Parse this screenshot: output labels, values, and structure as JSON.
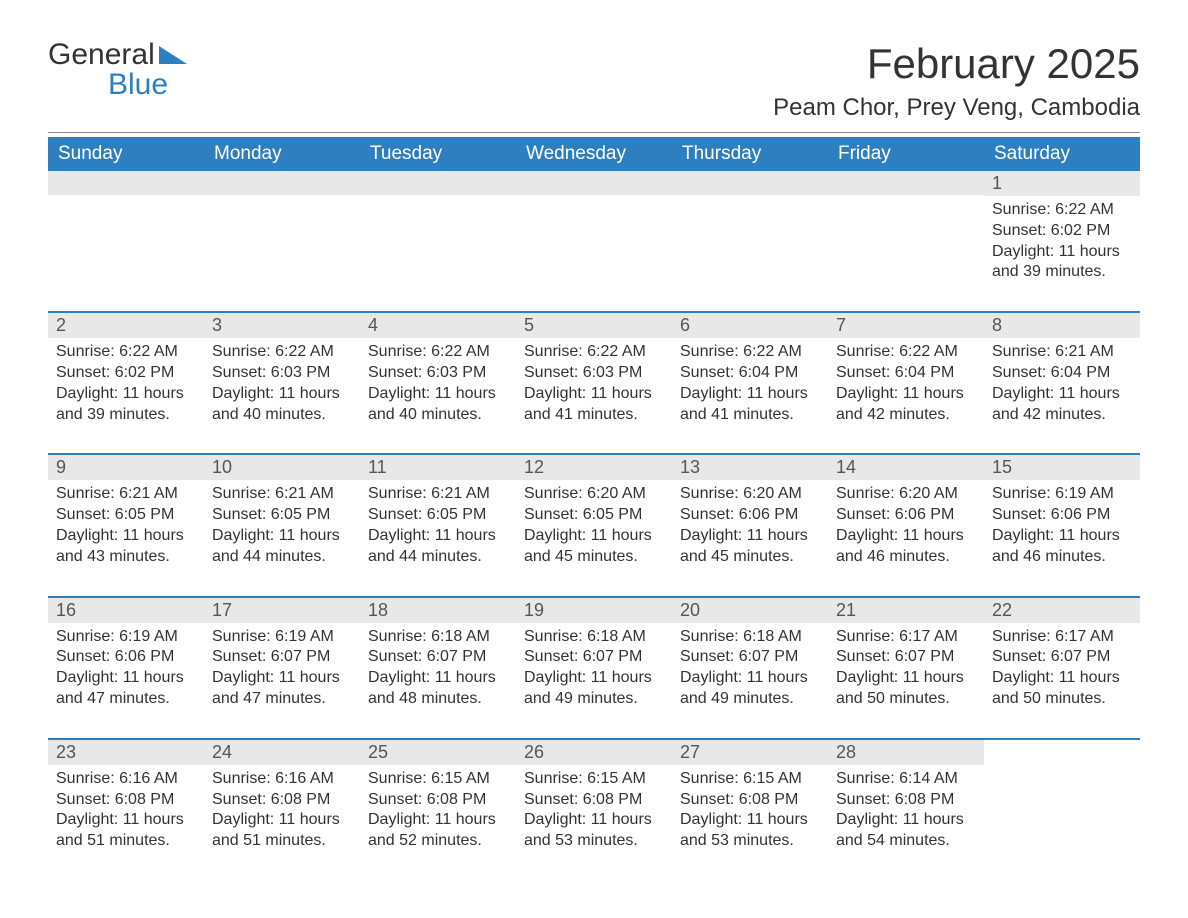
{
  "logo": {
    "word1": "General",
    "word2": "Blue"
  },
  "header": {
    "title": "February 2025",
    "location": "Peam Chor, Prey Veng, Cambodia"
  },
  "colors": {
    "primary": "#2e7fbf",
    "header_text": "#ffffff",
    "daynum_bg": "#e8e8e8",
    "text": "#333333",
    "background": "#ffffff"
  },
  "daynames": [
    "Sunday",
    "Monday",
    "Tuesday",
    "Wednesday",
    "Thursday",
    "Friday",
    "Saturday"
  ],
  "weeks": [
    [
      {
        "empty": true
      },
      {
        "empty": true
      },
      {
        "empty": true
      },
      {
        "empty": true
      },
      {
        "empty": true
      },
      {
        "empty": true
      },
      {
        "day": "1",
        "sunrise": "Sunrise: 6:22 AM",
        "sunset": "Sunset: 6:02 PM",
        "daylight": "Daylight: 11 hours and 39 minutes."
      }
    ],
    [
      {
        "day": "2",
        "sunrise": "Sunrise: 6:22 AM",
        "sunset": "Sunset: 6:02 PM",
        "daylight": "Daylight: 11 hours and 39 minutes."
      },
      {
        "day": "3",
        "sunrise": "Sunrise: 6:22 AM",
        "sunset": "Sunset: 6:03 PM",
        "daylight": "Daylight: 11 hours and 40 minutes."
      },
      {
        "day": "4",
        "sunrise": "Sunrise: 6:22 AM",
        "sunset": "Sunset: 6:03 PM",
        "daylight": "Daylight: 11 hours and 40 minutes."
      },
      {
        "day": "5",
        "sunrise": "Sunrise: 6:22 AM",
        "sunset": "Sunset: 6:03 PM",
        "daylight": "Daylight: 11 hours and 41 minutes."
      },
      {
        "day": "6",
        "sunrise": "Sunrise: 6:22 AM",
        "sunset": "Sunset: 6:04 PM",
        "daylight": "Daylight: 11 hours and 41 minutes."
      },
      {
        "day": "7",
        "sunrise": "Sunrise: 6:22 AM",
        "sunset": "Sunset: 6:04 PM",
        "daylight": "Daylight: 11 hours and 42 minutes."
      },
      {
        "day": "8",
        "sunrise": "Sunrise: 6:21 AM",
        "sunset": "Sunset: 6:04 PM",
        "daylight": "Daylight: 11 hours and 42 minutes."
      }
    ],
    [
      {
        "day": "9",
        "sunrise": "Sunrise: 6:21 AM",
        "sunset": "Sunset: 6:05 PM",
        "daylight": "Daylight: 11 hours and 43 minutes."
      },
      {
        "day": "10",
        "sunrise": "Sunrise: 6:21 AM",
        "sunset": "Sunset: 6:05 PM",
        "daylight": "Daylight: 11 hours and 44 minutes."
      },
      {
        "day": "11",
        "sunrise": "Sunrise: 6:21 AM",
        "sunset": "Sunset: 6:05 PM",
        "daylight": "Daylight: 11 hours and 44 minutes."
      },
      {
        "day": "12",
        "sunrise": "Sunrise: 6:20 AM",
        "sunset": "Sunset: 6:05 PM",
        "daylight": "Daylight: 11 hours and 45 minutes."
      },
      {
        "day": "13",
        "sunrise": "Sunrise: 6:20 AM",
        "sunset": "Sunset: 6:06 PM",
        "daylight": "Daylight: 11 hours and 45 minutes."
      },
      {
        "day": "14",
        "sunrise": "Sunrise: 6:20 AM",
        "sunset": "Sunset: 6:06 PM",
        "daylight": "Daylight: 11 hours and 46 minutes."
      },
      {
        "day": "15",
        "sunrise": "Sunrise: 6:19 AM",
        "sunset": "Sunset: 6:06 PM",
        "daylight": "Daylight: 11 hours and 46 minutes."
      }
    ],
    [
      {
        "day": "16",
        "sunrise": "Sunrise: 6:19 AM",
        "sunset": "Sunset: 6:06 PM",
        "daylight": "Daylight: 11 hours and 47 minutes."
      },
      {
        "day": "17",
        "sunrise": "Sunrise: 6:19 AM",
        "sunset": "Sunset: 6:07 PM",
        "daylight": "Daylight: 11 hours and 47 minutes."
      },
      {
        "day": "18",
        "sunrise": "Sunrise: 6:18 AM",
        "sunset": "Sunset: 6:07 PM",
        "daylight": "Daylight: 11 hours and 48 minutes."
      },
      {
        "day": "19",
        "sunrise": "Sunrise: 6:18 AM",
        "sunset": "Sunset: 6:07 PM",
        "daylight": "Daylight: 11 hours and 49 minutes."
      },
      {
        "day": "20",
        "sunrise": "Sunrise: 6:18 AM",
        "sunset": "Sunset: 6:07 PM",
        "daylight": "Daylight: 11 hours and 49 minutes."
      },
      {
        "day": "21",
        "sunrise": "Sunrise: 6:17 AM",
        "sunset": "Sunset: 6:07 PM",
        "daylight": "Daylight: 11 hours and 50 minutes."
      },
      {
        "day": "22",
        "sunrise": "Sunrise: 6:17 AM",
        "sunset": "Sunset: 6:07 PM",
        "daylight": "Daylight: 11 hours and 50 minutes."
      }
    ],
    [
      {
        "day": "23",
        "sunrise": "Sunrise: 6:16 AM",
        "sunset": "Sunset: 6:08 PM",
        "daylight": "Daylight: 11 hours and 51 minutes."
      },
      {
        "day": "24",
        "sunrise": "Sunrise: 6:16 AM",
        "sunset": "Sunset: 6:08 PM",
        "daylight": "Daylight: 11 hours and 51 minutes."
      },
      {
        "day": "25",
        "sunrise": "Sunrise: 6:15 AM",
        "sunset": "Sunset: 6:08 PM",
        "daylight": "Daylight: 11 hours and 52 minutes."
      },
      {
        "day": "26",
        "sunrise": "Sunrise: 6:15 AM",
        "sunset": "Sunset: 6:08 PM",
        "daylight": "Daylight: 11 hours and 53 minutes."
      },
      {
        "day": "27",
        "sunrise": "Sunrise: 6:15 AM",
        "sunset": "Sunset: 6:08 PM",
        "daylight": "Daylight: 11 hours and 53 minutes."
      },
      {
        "day": "28",
        "sunrise": "Sunrise: 6:14 AM",
        "sunset": "Sunset: 6:08 PM",
        "daylight": "Daylight: 11 hours and 54 minutes."
      },
      {
        "empty": true,
        "noBg": true
      }
    ]
  ]
}
